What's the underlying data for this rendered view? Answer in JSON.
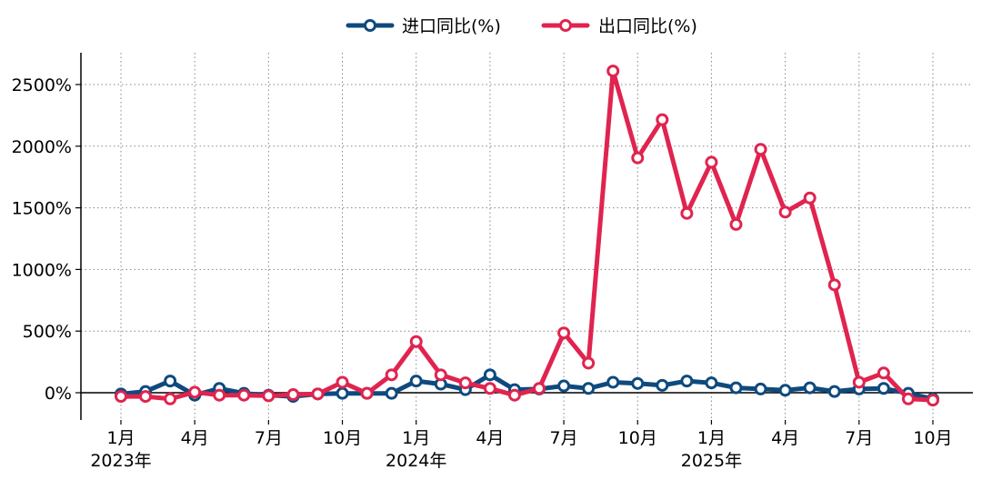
{
  "chart_data": {
    "type": "line",
    "title": "",
    "xlabel": "",
    "ylabel": "",
    "ylim": [
      -200,
      2750
    ],
    "yticks": [
      0,
      500,
      1000,
      1500,
      2000,
      2500
    ],
    "ytick_labels": [
      "0%",
      "500%",
      "1000%",
      "1500%",
      "2000%",
      "2500%"
    ],
    "xtick_index": [
      0,
      3,
      6,
      9,
      12,
      15,
      18,
      21,
      24,
      27,
      30,
      33
    ],
    "xtick_labels": [
      "1月",
      "4月",
      "7月",
      "10月",
      "1月",
      "4月",
      "7月",
      "10月",
      "1月",
      "4月",
      "7月",
      "10月"
    ],
    "year_labels": [
      {
        "index": 0,
        "label": "2023年"
      },
      {
        "index": 12,
        "label": "2024年"
      },
      {
        "index": 24,
        "label": "2025年"
      }
    ],
    "x": [
      "2023-01",
      "2023-02",
      "2023-03",
      "2023-04",
      "2023-05",
      "2023-06",
      "2023-07",
      "2023-08",
      "2023-09",
      "2023-10",
      "2023-11",
      "2023-12",
      "2024-01",
      "2024-02",
      "2024-03",
      "2024-04",
      "2024-05",
      "2024-06",
      "2024-07",
      "2024-08",
      "2024-09",
      "2024-10",
      "2024-11",
      "2024-12",
      "2025-01",
      "2025-02",
      "2025-03",
      "2025-04",
      "2025-05",
      "2025-06",
      "2025-07",
      "2025-08",
      "2025-09",
      "2025-10"
    ],
    "legend_position": "top-center",
    "grid": true,
    "series": [
      {
        "name": "进口同比(%)",
        "color": "#0e4a7e",
        "values": [
          -10,
          10,
          95,
          -20,
          35,
          -5,
          -20,
          -30,
          -10,
          -5,
          -5,
          -5,
          95,
          70,
          25,
          145,
          25,
          30,
          55,
          35,
          85,
          75,
          60,
          95,
          80,
          40,
          30,
          20,
          40,
          10,
          30,
          35,
          -5,
          -50
        ]
      },
      {
        "name": "出口同比(%)",
        "color": "#e0244f",
        "values": [
          -30,
          -30,
          -50,
          5,
          -20,
          -20,
          -25,
          -15,
          -10,
          85,
          -5,
          145,
          415,
          145,
          80,
          35,
          -20,
          35,
          485,
          240,
          2610,
          1905,
          2215,
          1455,
          1870,
          1365,
          1975,
          1465,
          1580,
          875,
          85,
          160,
          -50,
          -60
        ]
      }
    ]
  }
}
